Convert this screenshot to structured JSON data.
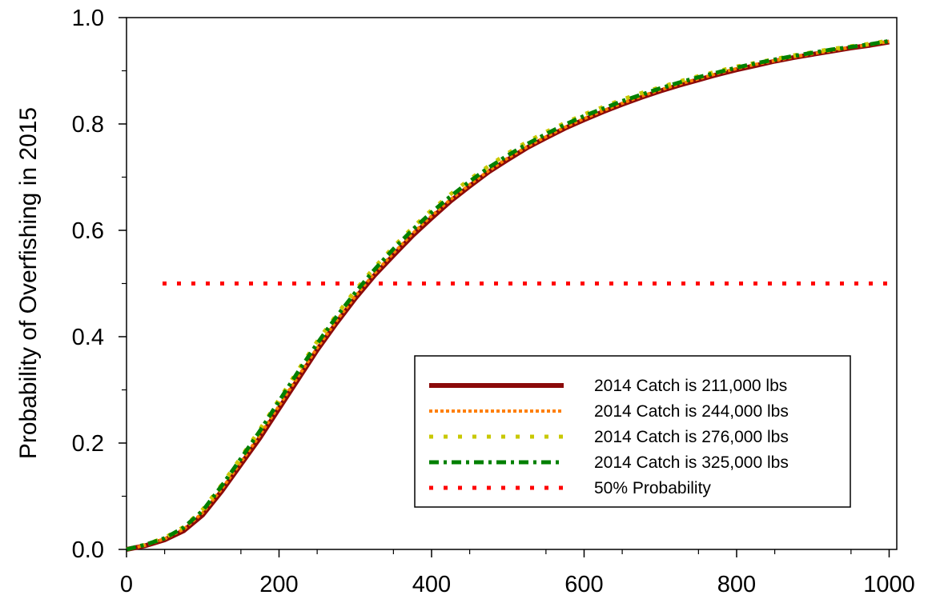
{
  "chart_data": {
    "type": "line",
    "title": "",
    "xlabel": "",
    "ylabel": "Probability of Overfishing in 2015",
    "xlim": [
      0,
      1010
    ],
    "ylim": [
      0,
      1.0
    ],
    "x_ticks": [
      0,
      200,
      400,
      600,
      800,
      1000
    ],
    "x_tick_labels": [
      "0",
      "200",
      "400",
      "600",
      "800",
      "1000"
    ],
    "y_ticks": [
      0.0,
      0.2,
      0.4,
      0.6,
      0.8,
      1.0
    ],
    "y_tick_labels": [
      "0.0",
      "0.2",
      "0.4",
      "0.6",
      "0.8",
      "1.0"
    ],
    "grid": false,
    "legend_position": "bottom-right",
    "x": [
      0,
      25,
      50,
      75,
      100,
      125,
      150,
      175,
      200,
      225,
      250,
      275,
      300,
      325,
      350,
      375,
      400,
      425,
      450,
      475,
      500,
      525,
      550,
      575,
      600,
      625,
      650,
      675,
      700,
      725,
      750,
      775,
      800,
      825,
      850,
      875,
      900,
      925,
      950,
      975,
      1000
    ],
    "series": [
      {
        "name": "2014 Catch is 211,000 lbs",
        "color": "#8b0a0a",
        "style": "solid",
        "values": [
          0.0,
          0.007,
          0.018,
          0.035,
          0.065,
          0.11,
          0.16,
          0.21,
          0.265,
          0.32,
          0.375,
          0.425,
          0.472,
          0.515,
          0.553,
          0.59,
          0.623,
          0.655,
          0.683,
          0.71,
          0.733,
          0.755,
          0.774,
          0.792,
          0.808,
          0.823,
          0.837,
          0.85,
          0.862,
          0.873,
          0.883,
          0.893,
          0.902,
          0.91,
          0.918,
          0.925,
          0.931,
          0.937,
          0.943,
          0.948,
          0.954
        ]
      },
      {
        "name": "2014 Catch is 244,000 lbs",
        "color": "#ff7f00",
        "style": "dotted",
        "values": [
          0.0,
          0.008,
          0.02,
          0.038,
          0.069,
          0.114,
          0.164,
          0.215,
          0.27,
          0.325,
          0.379,
          0.429,
          0.476,
          0.519,
          0.557,
          0.594,
          0.627,
          0.658,
          0.686,
          0.712,
          0.736,
          0.757,
          0.776,
          0.794,
          0.81,
          0.825,
          0.839,
          0.852,
          0.864,
          0.875,
          0.885,
          0.895,
          0.904,
          0.912,
          0.919,
          0.926,
          0.932,
          0.938,
          0.944,
          0.949,
          0.955
        ]
      },
      {
        "name": "2014 Catch is 276,000 lbs",
        "color": "#c8c800",
        "style": "dashed",
        "values": [
          0.0,
          0.009,
          0.022,
          0.042,
          0.075,
          0.122,
          0.173,
          0.226,
          0.282,
          0.337,
          0.391,
          0.44,
          0.487,
          0.53,
          0.569,
          0.605,
          0.638,
          0.668,
          0.696,
          0.721,
          0.745,
          0.766,
          0.785,
          0.802,
          0.818,
          0.832,
          0.846,
          0.858,
          0.869,
          0.88,
          0.89,
          0.899,
          0.908,
          0.915,
          0.922,
          0.929,
          0.935,
          0.941,
          0.946,
          0.951,
          0.957
        ]
      },
      {
        "name": "2014 Catch is 325,000 lbs",
        "color": "#008000",
        "style": "dash-dot",
        "values": [
          0.0,
          0.009,
          0.021,
          0.041,
          0.073,
          0.12,
          0.171,
          0.223,
          0.279,
          0.334,
          0.387,
          0.437,
          0.483,
          0.526,
          0.565,
          0.601,
          0.634,
          0.664,
          0.692,
          0.718,
          0.741,
          0.762,
          0.781,
          0.799,
          0.815,
          0.829,
          0.843,
          0.855,
          0.867,
          0.878,
          0.888,
          0.897,
          0.906,
          0.914,
          0.921,
          0.928,
          0.934,
          0.94,
          0.945,
          0.95,
          0.956
        ]
      },
      {
        "name": "50% Probability",
        "color": "#ff0000",
        "style": "dotted-thick",
        "values": [
          0.5,
          0.5,
          0.5,
          0.5,
          0.5,
          0.5,
          0.5,
          0.5,
          0.5,
          0.5,
          0.5,
          0.5,
          0.5,
          0.5,
          0.5,
          0.5,
          0.5,
          0.5,
          0.5,
          0.5,
          0.5,
          0.5,
          0.5,
          0.5,
          0.5,
          0.5,
          0.5,
          0.5,
          0.5,
          0.5,
          0.5,
          0.5,
          0.5,
          0.5,
          0.5,
          0.5,
          0.5,
          0.5,
          0.5,
          0.5,
          0.5
        ]
      }
    ]
  }
}
